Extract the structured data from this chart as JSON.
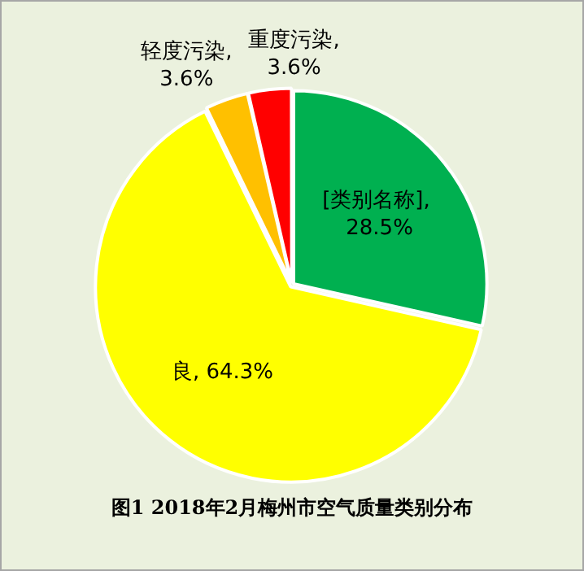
{
  "chart_data": {
    "type": "pie",
    "title": "图1 2018年2月梅州市空气质量类别分布",
    "categories": [
      "[类别名称]",
      "良",
      "轻度污染",
      "重度污染"
    ],
    "values": [
      28.5,
      64.3,
      3.6,
      3.6
    ],
    "colors": [
      "#00b050",
      "#ffff00",
      "#ffc000",
      "#ff0000"
    ],
    "value_labels": [
      ", 28.5%",
      ", 64.3%",
      ", 3.6%",
      ", 3.6%"
    ],
    "legend": false
  }
}
